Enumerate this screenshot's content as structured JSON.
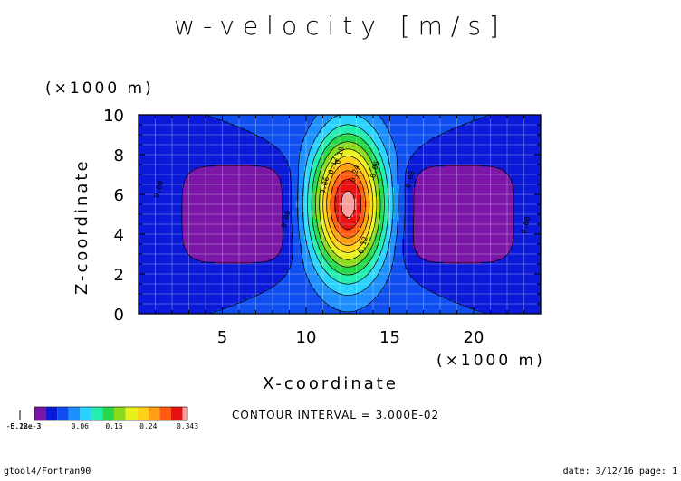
{
  "chart_data": {
    "type": "heatmap",
    "title": "w-velocity [m/s]",
    "xlabel": "X-coordinate",
    "ylabel": "Z-coordinate",
    "x_unit": "(×1000 m)",
    "y_unit": "(×1000 m)",
    "xlim": [
      0,
      24
    ],
    "ylim": [
      0,
      10
    ],
    "x_ticks": [
      5,
      10,
      15,
      20
    ],
    "x_tick_labels": [
      "5",
      "10",
      "15",
      "20"
    ],
    "y_ticks": [
      0,
      2,
      4,
      6,
      8,
      10
    ],
    "y_tick_labels": [
      "0",
      "2",
      "4",
      "6",
      "8",
      "10"
    ],
    "grid": true,
    "field": {
      "peak": {
        "x": 12.5,
        "z": 5.5,
        "value": 0.343
      },
      "updraft_half_width_x": 2.7,
      "updraft_half_height_z": 6.0,
      "downdrafts": [
        {
          "x": 5.8,
          "z": 5.0,
          "value": -0.06
        },
        {
          "x": 19.2,
          "z": 5.0,
          "value": -0.06
        }
      ]
    },
    "contour_interval": 0.03,
    "contour_labels": [
      {
        "text": "0.06",
        "x": 11.1,
        "z": 6.0
      },
      {
        "text": "0.12",
        "x": 11.6,
        "z": 7.0
      },
      {
        "text": "0.18",
        "x": 12.0,
        "z": 7.5
      },
      {
        "text": "0.24",
        "x": 12.9,
        "z": 6.6
      },
      {
        "text": "0.12",
        "x": 13.4,
        "z": 3.0
      },
      {
        "text": "0.06",
        "x": 14.1,
        "z": 6.8
      },
      {
        "text": "0.00",
        "x": 1.2,
        "z": 5.8
      },
      {
        "text": "0.00",
        "x": 8.8,
        "z": 4.3
      },
      {
        "text": "0.00",
        "x": 16.2,
        "z": 6.3
      },
      {
        "text": "0.00",
        "x": 23.1,
        "z": 4.0
      }
    ],
    "colorbar": {
      "levels": [
        -0.06,
        -0.03,
        0.0,
        0.03,
        0.06,
        0.09,
        0.12,
        0.15,
        0.18,
        0.21,
        0.24,
        0.27,
        0.3,
        0.33,
        0.343
      ],
      "colors": [
        "#7b16a6",
        "#0a1ad8",
        "#0f4ff0",
        "#1d8fff",
        "#2ad2ff",
        "#22eeb0",
        "#26d84a",
        "#8bd91c",
        "#e8f21a",
        "#ffd21a",
        "#ff9f12",
        "#ff5a10",
        "#e81212",
        "#f6a0a0"
      ],
      "tick_labels": [
        "-5.28e-3",
        "0.06",
        "0.15",
        "0.24",
        "0.343"
      ],
      "tick_values": [
        -0.00528,
        0.06,
        0.15,
        0.24,
        0.343
      ],
      "overprint_label": "-6.12e-3"
    }
  },
  "contour_interval_text": "CONTOUR INTERVAL = 3.000E-02",
  "footer": {
    "left": "gtool4/Fortran90",
    "right": "date: 3/12/16 page: 1"
  }
}
